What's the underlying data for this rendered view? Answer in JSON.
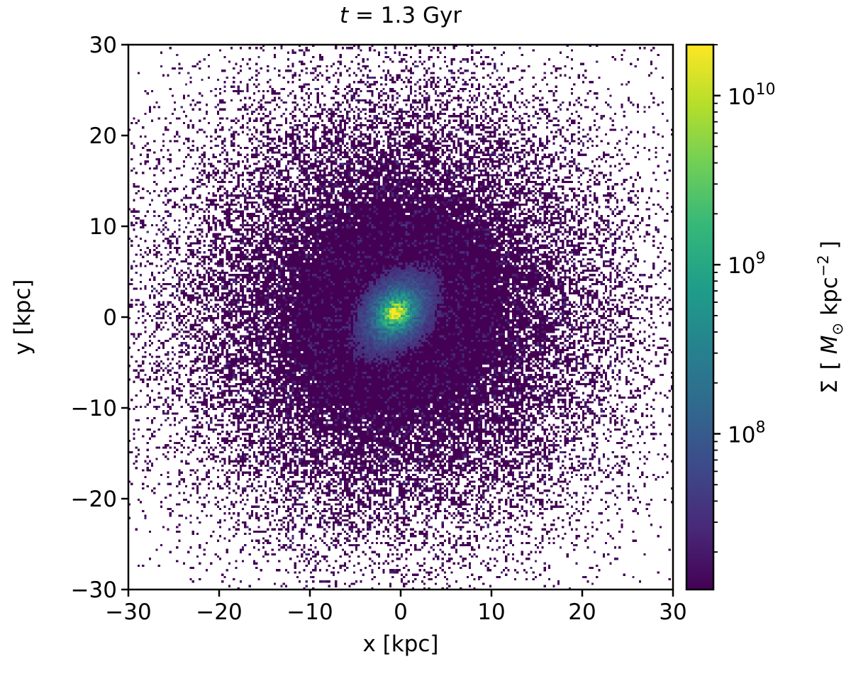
{
  "chart_data": {
    "type": "heatmap",
    "title": "t = 1.3 Gyr",
    "title_parts": {
      "var": "t",
      "eq": " = ",
      "value": "1.3",
      "unit": " Gyr"
    },
    "xlabel": "x [kpc]",
    "ylabel": "y [kpc]",
    "xlim": [
      -30,
      30
    ],
    "ylim": [
      -30,
      30
    ],
    "xticks": [
      -30,
      -20,
      -10,
      0,
      10,
      20,
      30
    ],
    "yticks": [
      -30,
      -20,
      -10,
      0,
      10,
      20,
      30
    ],
    "xtick_labels": [
      "−30",
      "−20",
      "−10",
      "0",
      "10",
      "20",
      "30"
    ],
    "ytick_labels": [
      "−30",
      "−20",
      "−10",
      "0",
      "10",
      "20",
      "30"
    ],
    "grid": false,
    "bins": 240,
    "colormap": "viridis",
    "colorbar": {
      "label_parts": {
        "sigma": "Σ",
        "open": "[",
        "msym": "M",
        "msub": "⊙",
        "unit": "kpc",
        "exp": "−2",
        "close": "]"
      },
      "label": "Σ [M⊙ kpc⁻²]",
      "scale": "log",
      "vmin": 12000000.0,
      "vmax": 20000000000.0,
      "major_ticks": [
        100000000.0,
        1000000000.0,
        10000000000.0
      ],
      "major_tick_labels": [
        {
          "base": "10",
          "exp": "8"
        },
        {
          "base": "10",
          "exp": "9"
        },
        {
          "base": "10",
          "exp": "10"
        }
      ]
    },
    "distribution": {
      "description_free": true,
      "center": [
        -0.5,
        0.5
      ],
      "peak_value": 20000000000.0,
      "floor_value": 12000000.0,
      "core_scale_kpc": 1.5,
      "bulge_scale_kpc": 4.5,
      "bulge_orientation_deg": 50,
      "bulge_axis_ratio": 0.55,
      "halo_extent_kpc": 22
    }
  },
  "colors": {
    "viridis_stops": [
      "#440154",
      "#482878",
      "#3e4989",
      "#31688e",
      "#26828e",
      "#1f9e89",
      "#35b779",
      "#6ece58",
      "#b5de2b",
      "#fde725"
    ],
    "axis": "#000000",
    "background": "#ffffff"
  }
}
